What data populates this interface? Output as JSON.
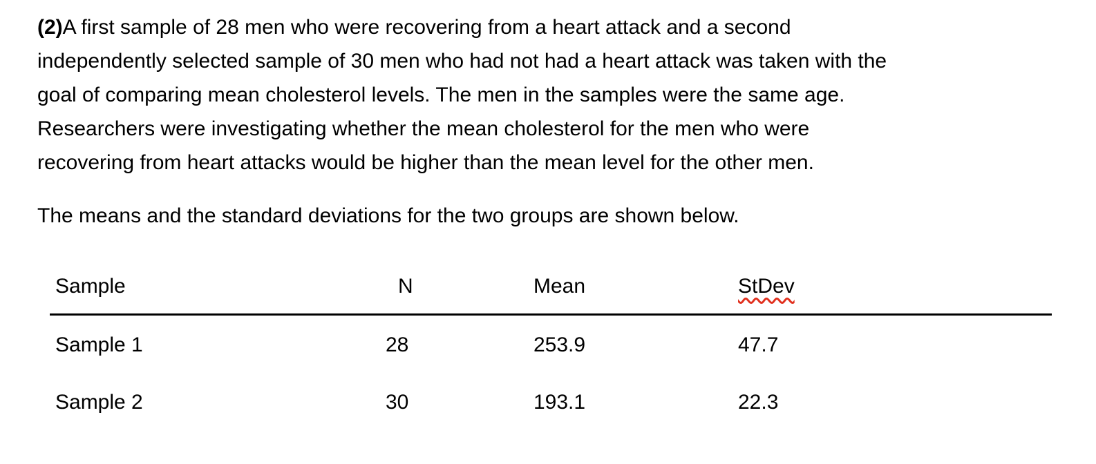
{
  "page": {
    "background_color": "#ffffff",
    "text_color": "#000000"
  },
  "problem": {
    "number_label": "(2)",
    "line1_rest": "A first sample of 28 men who were recovering from a heart attack and a second",
    "lines": [
      "independently selected sample of 30 men who had not had a heart attack was taken with the",
      "goal of comparing mean cholesterol levels. The men in the samples were the same age.",
      "Researchers were investigating whether the mean cholesterol for the men who were",
      "recovering from heart attacks would be higher than the mean level for the other men."
    ]
  },
  "intro": {
    "text": "The means and the standard deviations for the two groups are shown below."
  },
  "table": {
    "headers": [
      "Sample",
      "N",
      "Mean",
      "StDev"
    ],
    "rows": [
      {
        "sample": "Sample 1",
        "n": "28",
        "mean": "253.9",
        "stdev": "47.7"
      },
      {
        "sample": "Sample 2",
        "n": "30",
        "mean": "193.1",
        "stdev": "22.3"
      }
    ],
    "spellcheck_underline_color": "#e1301e"
  }
}
